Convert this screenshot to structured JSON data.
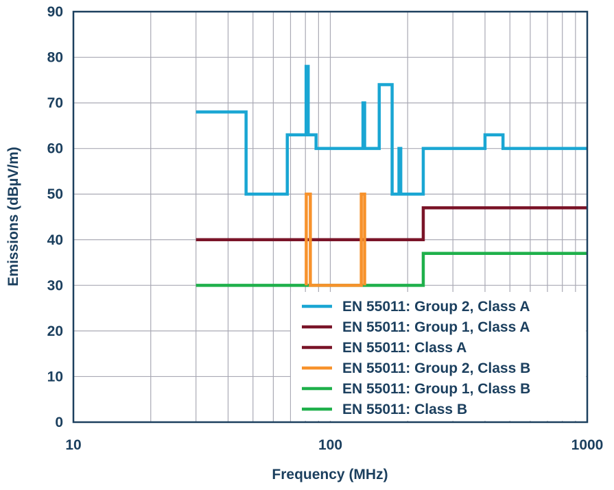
{
  "chart_data": {
    "type": "line",
    "title": "",
    "xlabel": "Frequency (MHz)",
    "ylabel": "Emissions (dBµV/m)",
    "xscale": "log",
    "xlim": [
      10,
      1000
    ],
    "ylim": [
      0,
      90
    ],
    "xticks": [
      "10",
      "100",
      "1000"
    ],
    "yticks": [
      "0",
      "10",
      "20",
      "30",
      "40",
      "50",
      "60",
      "70",
      "80",
      "90"
    ],
    "grid": true,
    "legend_position": "bottom-right",
    "series": [
      {
        "name": "EN 55011: Group 2, Class A",
        "color": "#1aa6d3",
        "x": [
          30,
          47,
          47,
          68,
          68,
          80,
          80.5,
          80.5,
          82,
          82,
          85,
          85,
          88,
          88,
          134,
          134,
          136,
          136,
          155,
          155,
          174,
          174,
          185,
          185,
          188,
          188,
          230,
          230,
          400,
          400,
          470,
          470,
          1000
        ],
        "y": [
          68,
          68,
          50,
          50,
          63,
          63,
          63,
          78,
          78,
          63,
          63,
          63,
          63,
          60,
          60,
          70,
          70,
          60,
          60,
          74,
          74,
          50,
          50,
          60,
          60,
          50,
          50,
          60,
          60,
          63,
          63,
          60,
          60
        ]
      },
      {
        "name": "EN 55011: Group 1, Class A",
        "color": "#7a1428",
        "x": [
          30,
          230,
          230,
          1000
        ],
        "y": [
          40,
          40,
          47,
          47
        ]
      },
      {
        "name": "EN 55011: Class A",
        "color": "#7a1428",
        "x": [],
        "y": []
      },
      {
        "name": "EN 55011: Group 2, Class B",
        "color": "#f7922c",
        "x": [
          80.6,
          80.6,
          83.6,
          83.6,
          132,
          132,
          136,
          136
        ],
        "y": [
          30,
          50,
          50,
          30,
          30,
          50,
          50,
          30
        ]
      },
      {
        "name": "EN 55011: Group 1, Class B",
        "color": "#1fb04b",
        "x": [
          30,
          230,
          230,
          1000
        ],
        "y": [
          30,
          30,
          37,
          37
        ]
      },
      {
        "name": "EN 55011: Class B",
        "color": "#1fb04b",
        "x": [],
        "y": []
      }
    ]
  },
  "colors": {
    "axis": "#1b3f5e",
    "grid": "#a9a9b4",
    "background": "#ffffff"
  }
}
